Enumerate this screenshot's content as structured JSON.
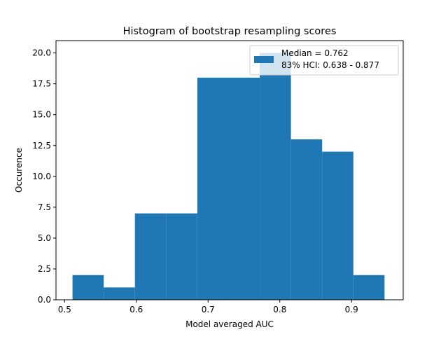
{
  "chart_data": {
    "type": "bar",
    "title": "Histogram of bootstrap resampling scores",
    "xlabel": "Model averaged AUC",
    "ylabel": "Occurence",
    "xlim": [
      0.488,
      0.972
    ],
    "ylim": [
      0,
      21
    ],
    "xticks": [
      0.5,
      0.6,
      0.7,
      0.8,
      0.9
    ],
    "xtick_labels": [
      "0.5",
      "0.6",
      "0.7",
      "0.8",
      "0.9"
    ],
    "yticks": [
      0,
      2.5,
      5,
      7.5,
      10,
      12.5,
      15,
      17.5,
      20
    ],
    "ytick_labels": [
      "0.0",
      "2.5",
      "5.0",
      "7.5",
      "10.0",
      "12.5",
      "15.0",
      "17.5",
      "20.0"
    ],
    "bin_edges": [
      0.511,
      0.5545,
      0.598,
      0.6415,
      0.685,
      0.7285,
      0.772,
      0.8155,
      0.859,
      0.9025,
      0.946
    ],
    "values": [
      2,
      1,
      7,
      7,
      18,
      18,
      20,
      13,
      12,
      2
    ],
    "bar_color": "#1f77b4",
    "grid": false,
    "legend": {
      "placement": "upper right",
      "lines": [
        "Median = 0.762",
        "83% HCI: 0.638 - 0.877"
      ]
    }
  }
}
